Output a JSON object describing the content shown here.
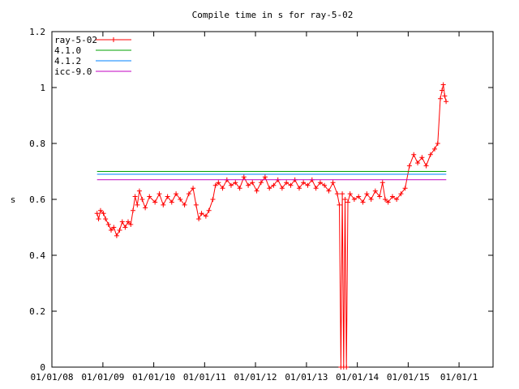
{
  "chart_data": {
    "type": "line",
    "title": "Compile time in s for ray-5-02",
    "xlabel": "",
    "ylabel": "s",
    "x_range": [
      "2008-01-01",
      "2016-09-01"
    ],
    "ylim": [
      0,
      1.2
    ],
    "y_ticks": [
      0,
      0.2,
      0.4,
      0.6,
      0.8,
      1,
      1.2
    ],
    "x_ticks": [
      {
        "label": "01/01/08",
        "date": "2008-01-01"
      },
      {
        "label": "01/01/09",
        "date": "2009-01-01"
      },
      {
        "label": "01/01/10",
        "date": "2010-01-01"
      },
      {
        "label": "01/01/11",
        "date": "2011-01-01"
      },
      {
        "label": "01/01/12",
        "date": "2012-01-01"
      },
      {
        "label": "01/01/13",
        "date": "2013-01-01"
      },
      {
        "label": "01/01/14",
        "date": "2014-01-01"
      },
      {
        "label": "01/01/15",
        "date": "2015-01-01"
      },
      {
        "label": "01/01/1",
        "date": "2016-01-01"
      }
    ],
    "grid": false,
    "legend_position": "top-left",
    "series": [
      {
        "name": "ray-5-02",
        "color": "#ff0000",
        "style": "line-with-plus-markers",
        "points": [
          [
            "2008-11-20",
            0.55
          ],
          [
            "2008-12-01",
            0.53
          ],
          [
            "2008-12-15",
            0.56
          ],
          [
            "2009-01-05",
            0.55
          ],
          [
            "2009-01-20",
            0.53
          ],
          [
            "2009-02-10",
            0.51
          ],
          [
            "2009-03-01",
            0.49
          ],
          [
            "2009-03-20",
            0.5
          ],
          [
            "2009-04-10",
            0.47
          ],
          [
            "2009-05-01",
            0.49
          ],
          [
            "2009-05-20",
            0.52
          ],
          [
            "2009-06-10",
            0.5
          ],
          [
            "2009-07-01",
            0.52
          ],
          [
            "2009-07-20",
            0.51
          ],
          [
            "2009-08-05",
            0.56
          ],
          [
            "2009-08-20",
            0.61
          ],
          [
            "2009-09-05",
            0.58
          ],
          [
            "2009-09-20",
            0.63
          ],
          [
            "2009-10-10",
            0.6
          ],
          [
            "2009-11-01",
            0.57
          ],
          [
            "2009-12-01",
            0.61
          ],
          [
            "2010-01-10",
            0.59
          ],
          [
            "2010-02-10",
            0.62
          ],
          [
            "2010-03-10",
            0.58
          ],
          [
            "2010-04-10",
            0.61
          ],
          [
            "2010-05-10",
            0.59
          ],
          [
            "2010-06-10",
            0.62
          ],
          [
            "2010-07-10",
            0.6
          ],
          [
            "2010-08-10",
            0.58
          ],
          [
            "2010-09-10",
            0.62
          ],
          [
            "2010-10-10",
            0.64
          ],
          [
            "2010-11-01",
            0.58
          ],
          [
            "2010-11-20",
            0.53
          ],
          [
            "2010-12-10",
            0.55
          ],
          [
            "2011-01-10",
            0.54
          ],
          [
            "2011-02-01",
            0.56
          ],
          [
            "2011-03-01",
            0.6
          ],
          [
            "2011-03-20",
            0.65
          ],
          [
            "2011-04-10",
            0.66
          ],
          [
            "2011-05-10",
            0.64
          ],
          [
            "2011-06-10",
            0.67
          ],
          [
            "2011-07-10",
            0.65
          ],
          [
            "2011-08-10",
            0.66
          ],
          [
            "2011-09-10",
            0.64
          ],
          [
            "2011-10-10",
            0.68
          ],
          [
            "2011-11-10",
            0.65
          ],
          [
            "2011-12-10",
            0.66
          ],
          [
            "2012-01-10",
            0.63
          ],
          [
            "2012-02-10",
            0.66
          ],
          [
            "2012-03-10",
            0.68
          ],
          [
            "2012-04-10",
            0.64
          ],
          [
            "2012-05-10",
            0.65
          ],
          [
            "2012-06-10",
            0.67
          ],
          [
            "2012-07-10",
            0.64
          ],
          [
            "2012-08-10",
            0.66
          ],
          [
            "2012-09-10",
            0.65
          ],
          [
            "2012-10-10",
            0.67
          ],
          [
            "2012-11-10",
            0.64
          ],
          [
            "2012-12-10",
            0.66
          ],
          [
            "2013-01-10",
            0.65
          ],
          [
            "2013-02-10",
            0.67
          ],
          [
            "2013-03-10",
            0.64
          ],
          [
            "2013-04-10",
            0.66
          ],
          [
            "2013-05-10",
            0.65
          ],
          [
            "2013-06-10",
            0.63
          ],
          [
            "2013-07-10",
            0.66
          ],
          [
            "2013-08-10",
            0.62
          ],
          [
            "2013-08-25",
            0.58
          ],
          [
            "2013-09-05",
            0.0
          ],
          [
            "2013-09-15",
            0.62
          ],
          [
            "2013-09-25",
            0.0
          ],
          [
            "2013-10-05",
            0.6
          ],
          [
            "2013-10-15",
            0.0
          ],
          [
            "2013-10-25",
            0.59
          ],
          [
            "2013-11-10",
            0.62
          ],
          [
            "2013-12-10",
            0.6
          ],
          [
            "2014-01-10",
            0.61
          ],
          [
            "2014-02-10",
            0.59
          ],
          [
            "2014-03-10",
            0.62
          ],
          [
            "2014-04-10",
            0.6
          ],
          [
            "2014-05-10",
            0.63
          ],
          [
            "2014-06-10",
            0.61
          ],
          [
            "2014-07-01",
            0.66
          ],
          [
            "2014-07-20",
            0.6
          ],
          [
            "2014-08-10",
            0.59
          ],
          [
            "2014-09-10",
            0.61
          ],
          [
            "2014-10-10",
            0.6
          ],
          [
            "2014-11-10",
            0.62
          ],
          [
            "2014-12-10",
            0.64
          ],
          [
            "2015-01-10",
            0.72
          ],
          [
            "2015-02-10",
            0.76
          ],
          [
            "2015-03-10",
            0.73
          ],
          [
            "2015-04-10",
            0.75
          ],
          [
            "2015-05-10",
            0.72
          ],
          [
            "2015-06-10",
            0.76
          ],
          [
            "2015-07-10",
            0.78
          ],
          [
            "2015-08-01",
            0.8
          ],
          [
            "2015-08-20",
            0.96
          ],
          [
            "2015-09-01",
            0.99
          ],
          [
            "2015-09-10",
            1.01
          ],
          [
            "2015-09-20",
            0.97
          ],
          [
            "2015-09-30",
            0.95
          ]
        ]
      },
      {
        "name": "4.1.0",
        "color": "#00a000",
        "style": "line",
        "points": [
          [
            "2008-11-20",
            0.7
          ],
          [
            "2015-10-01",
            0.7
          ]
        ]
      },
      {
        "name": "4.1.2",
        "color": "#0080ff",
        "style": "line",
        "points": [
          [
            "2008-11-20",
            0.69
          ],
          [
            "2015-10-01",
            0.69
          ]
        ]
      },
      {
        "name": "icc-9.0",
        "color": "#c000c0",
        "style": "line",
        "points": [
          [
            "2008-11-20",
            0.67
          ],
          [
            "2015-10-01",
            0.67
          ]
        ]
      }
    ]
  }
}
